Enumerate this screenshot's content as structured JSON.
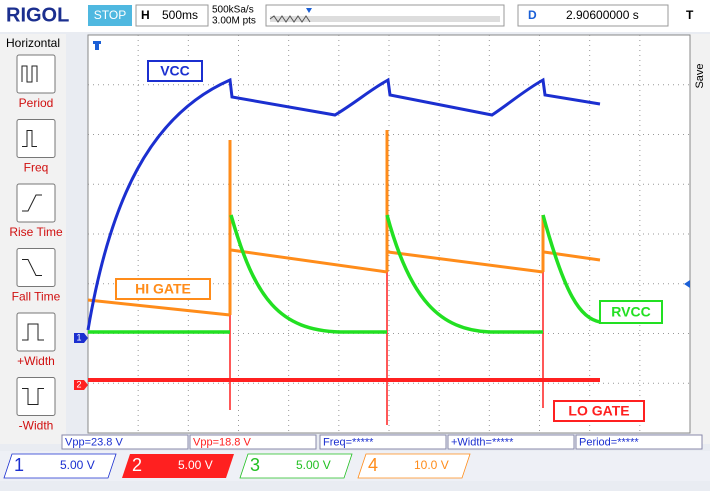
{
  "top_bar": {
    "brand": "RIGOL",
    "status": "STOP",
    "timebase_label": "H",
    "timebase": "500ms",
    "sample_rate": "500kSa/s",
    "memory_depth": "3.00M pts",
    "delay_label": "D",
    "delay": "2.90600000 s",
    "trigger_label": "T"
  },
  "side_menu": {
    "title": "Horizontal",
    "items": [
      "Period",
      "Freq",
      "Rise Time",
      "Fall Time",
      "+Width",
      "-Width"
    ]
  },
  "right_menu": {
    "save": "Save"
  },
  "trace_labels": {
    "vcc": "VCC",
    "hi_gate": "HI GATE",
    "rvcc": "RVCC",
    "lo_gate": "LO GATE"
  },
  "channel_markers": [
    "1",
    "2"
  ],
  "measurements": [
    "Vpp=23.8 V",
    "Vpp=18.8 V",
    "Freq=*****",
    "+Width=*****",
    "Period=*****"
  ],
  "channels": [
    {
      "number": "1",
      "scale": "5.00 V"
    },
    {
      "number": "2",
      "scale": "5.00 V"
    },
    {
      "number": "3",
      "scale": "5.00 V"
    },
    {
      "number": "4",
      "scale": "10.0 V"
    }
  ]
}
